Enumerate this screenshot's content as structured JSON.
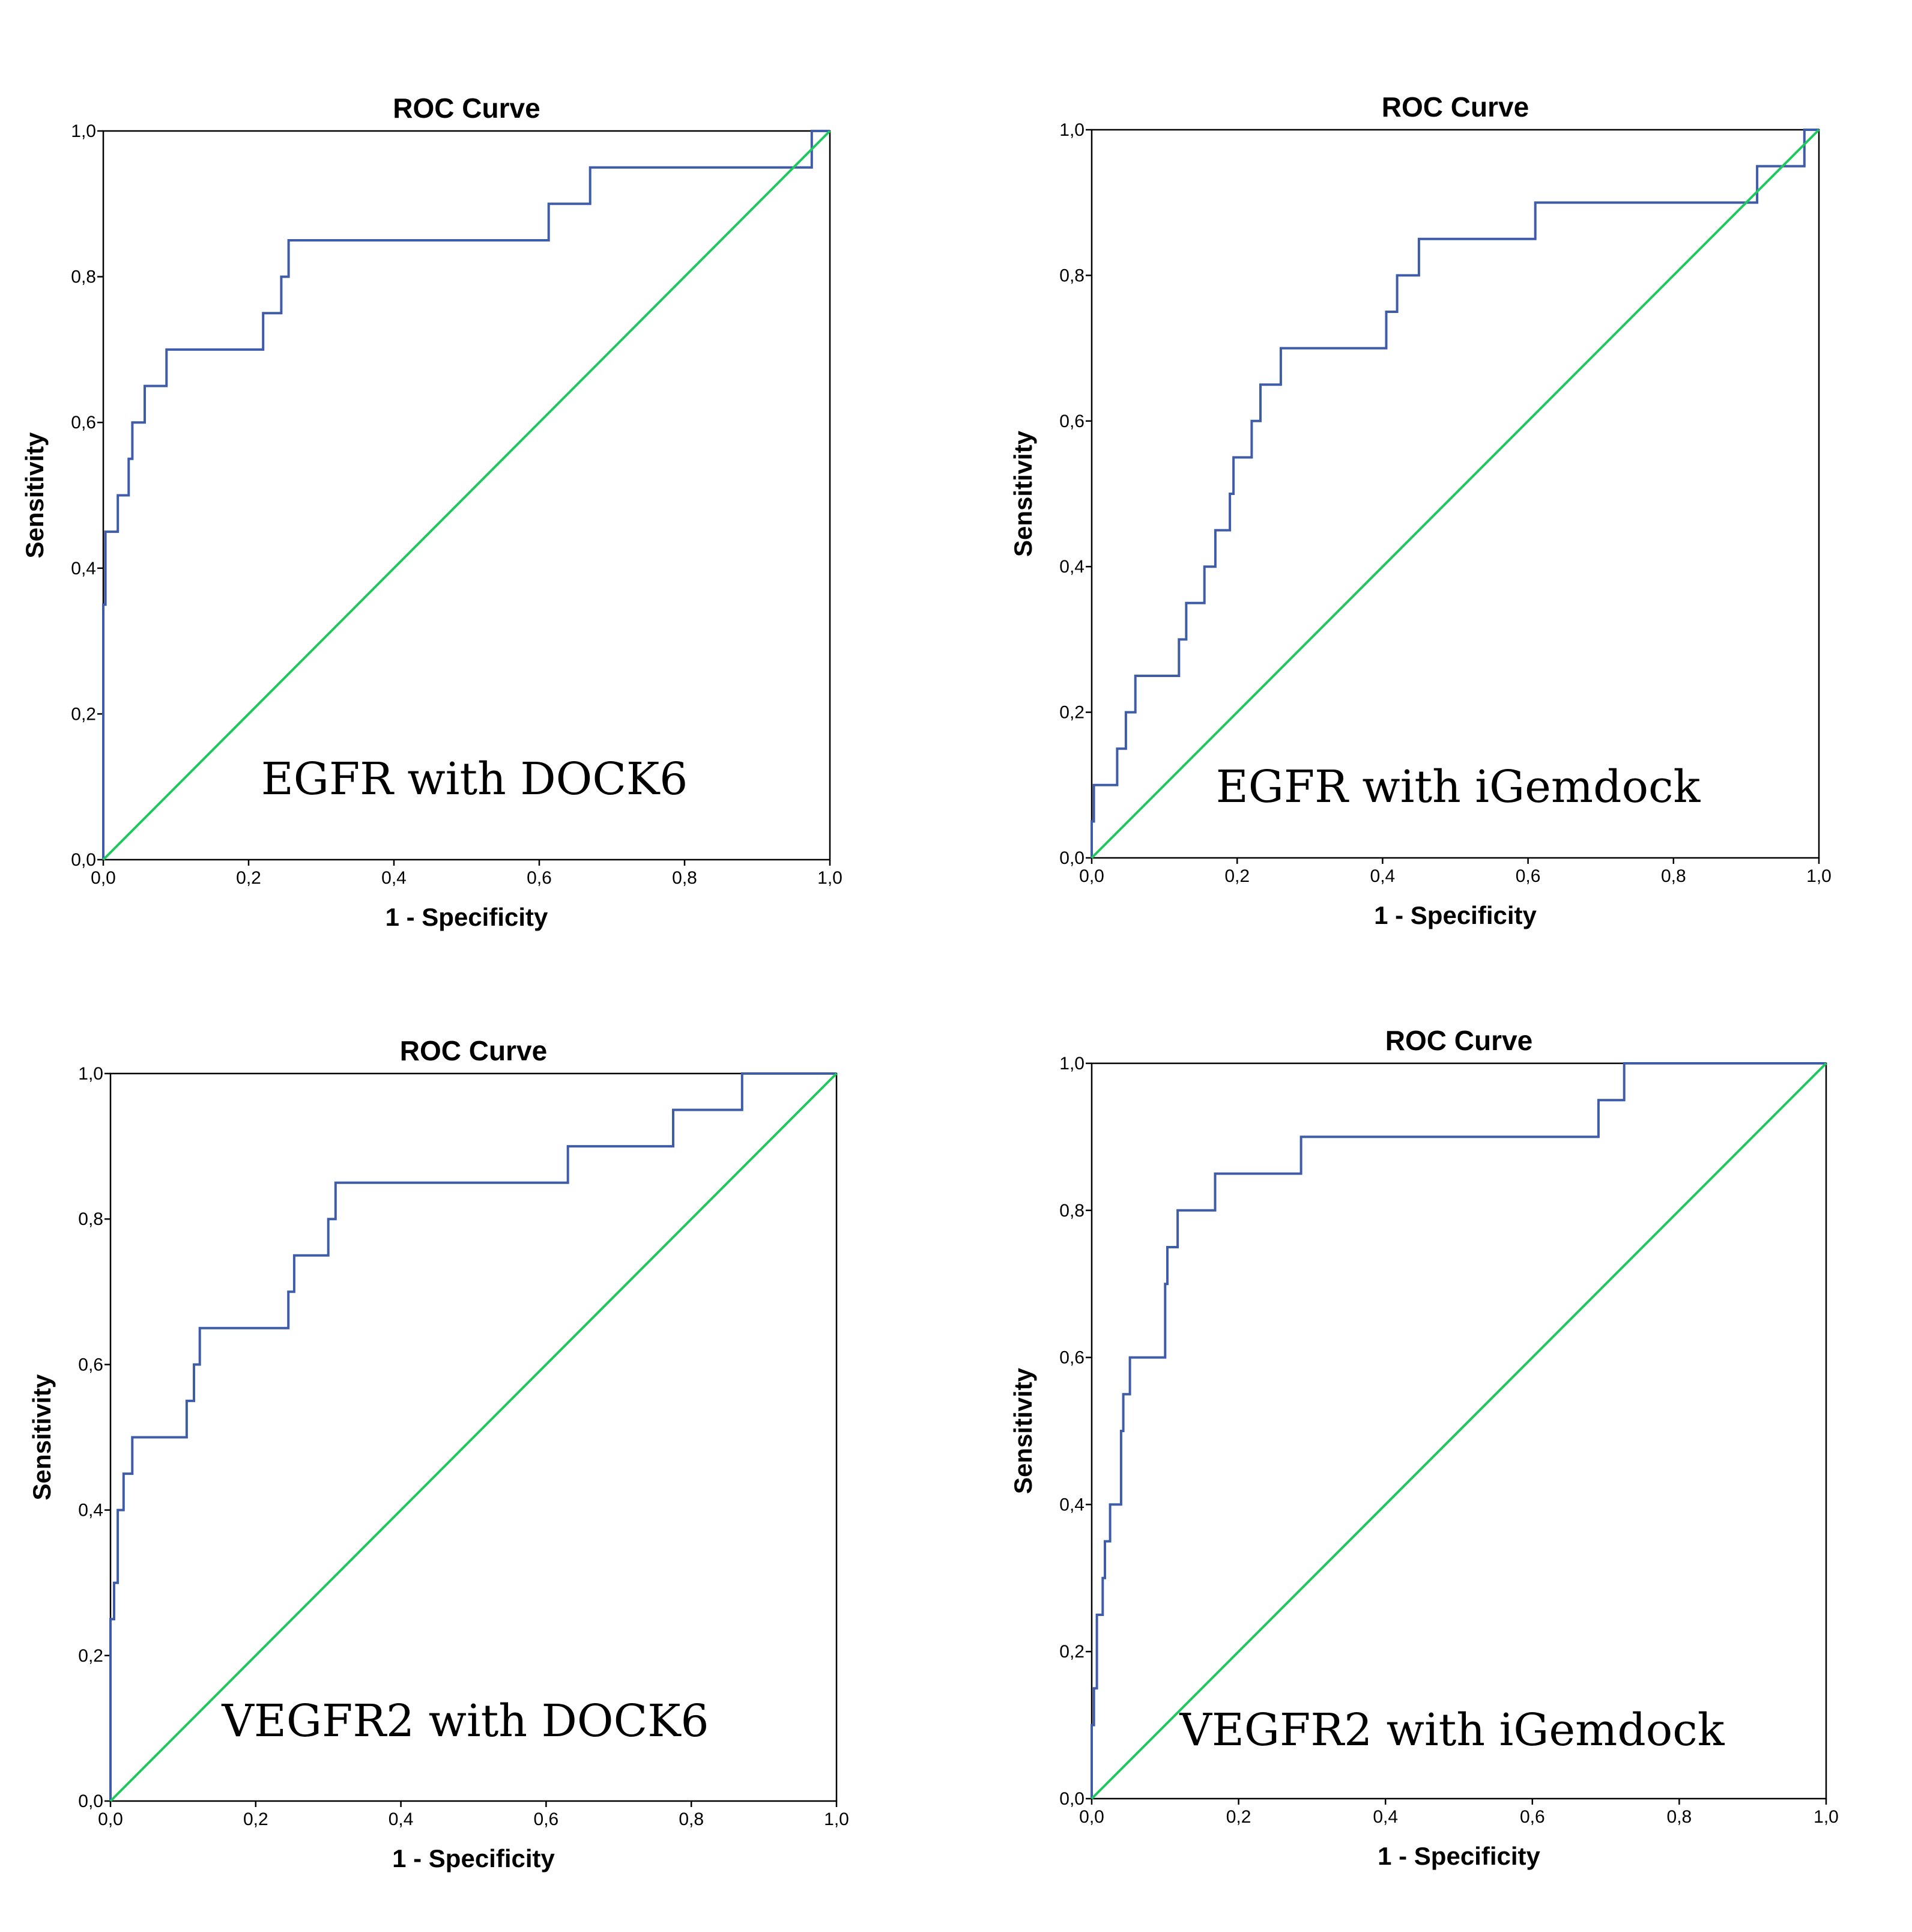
{
  "chart_data": [
    {
      "type": "line",
      "title": "ROC Curve",
      "xlabel": "1 - Specificity",
      "ylabel": "Sensitivity",
      "annotation": "EGFR with DOCK6",
      "xlim": [
        0,
        1
      ],
      "ylim": [
        0,
        1
      ],
      "xticks": [
        "0,0",
        "0,2",
        "0,4",
        "0,6",
        "0,8",
        "1,0"
      ],
      "yticks": [
        "0,0",
        "0,2",
        "0,4",
        "0,6",
        "0,8",
        "1,0"
      ],
      "series": [
        {
          "name": "ROC",
          "color": "#3f5ca9",
          "x": [
            0,
            0,
            0.003,
            0.003,
            0.02,
            0.02,
            0.035,
            0.035,
            0.04,
            0.04,
            0.057,
            0.057,
            0.087,
            0.087,
            0.22,
            0.22,
            0.245,
            0.245,
            0.255,
            0.255,
            0.613,
            0.613,
            0.67,
            0.67,
            0.975,
            0.975,
            1.0
          ],
          "y": [
            0,
            0.35,
            0.35,
            0.45,
            0.45,
            0.5,
            0.5,
            0.55,
            0.55,
            0.6,
            0.6,
            0.65,
            0.65,
            0.7,
            0.7,
            0.75,
            0.75,
            0.8,
            0.8,
            0.85,
            0.85,
            0.9,
            0.9,
            0.95,
            0.95,
            1.0,
            1.0
          ]
        },
        {
          "name": "Reference Line",
          "color": "#1fc75f",
          "x": [
            0,
            1
          ],
          "y": [
            0,
            1
          ]
        }
      ]
    },
    {
      "type": "line",
      "title": "ROC Curve",
      "xlabel": "1 - Specificity",
      "ylabel": "Sensitivity",
      "annotation": "EGFR with iGemdock",
      "xlim": [
        0,
        1
      ],
      "ylim": [
        0,
        1
      ],
      "xticks": [
        "0,0",
        "0,2",
        "0,4",
        "0,6",
        "0,8",
        "1,0"
      ],
      "yticks": [
        "0,0",
        "0,2",
        "0,4",
        "0,6",
        "0,8",
        "1,0"
      ],
      "series": [
        {
          "name": "ROC",
          "color": "#3f5ca9",
          "x": [
            0,
            0,
            0.003,
            0.003,
            0.035,
            0.035,
            0.047,
            0.047,
            0.06,
            0.06,
            0.12,
            0.12,
            0.13,
            0.13,
            0.155,
            0.155,
            0.17,
            0.17,
            0.19,
            0.19,
            0.195,
            0.195,
            0.22,
            0.22,
            0.232,
            0.232,
            0.26,
            0.26,
            0.405,
            0.405,
            0.42,
            0.42,
            0.45,
            0.45,
            0.61,
            0.61,
            0.915,
            0.915,
            0.98,
            0.98,
            1.0
          ],
          "y": [
            0,
            0.05,
            0.05,
            0.1,
            0.1,
            0.15,
            0.15,
            0.2,
            0.2,
            0.25,
            0.25,
            0.3,
            0.3,
            0.35,
            0.35,
            0.4,
            0.4,
            0.45,
            0.45,
            0.5,
            0.5,
            0.55,
            0.55,
            0.6,
            0.6,
            0.65,
            0.65,
            0.7,
            0.7,
            0.75,
            0.75,
            0.8,
            0.8,
            0.85,
            0.85,
            0.9,
            0.9,
            0.95,
            0.95,
            1.0,
            1.0
          ]
        },
        {
          "name": "Reference Line",
          "color": "#1fc75f",
          "x": [
            0,
            1
          ],
          "y": [
            0,
            1
          ]
        }
      ]
    },
    {
      "type": "line",
      "title": "ROC Curve",
      "xlabel": "1 - Specificity",
      "ylabel": "Sensitivity",
      "annotation": "VEGFR2 with DOCK6",
      "xlim": [
        0,
        1
      ],
      "ylim": [
        0,
        1
      ],
      "xticks": [
        "0,0",
        "0,2",
        "0,4",
        "0,6",
        "0,8",
        "1,0"
      ],
      "yticks": [
        "0,0",
        "0,2",
        "0,4",
        "0,6",
        "0,8",
        "1,0"
      ],
      "series": [
        {
          "name": "ROC",
          "color": "#3f5ca9",
          "x": [
            0,
            0,
            0.005,
            0.005,
            0.01,
            0.01,
            0.018,
            0.018,
            0.03,
            0.03,
            0.105,
            0.105,
            0.115,
            0.115,
            0.123,
            0.123,
            0.245,
            0.245,
            0.253,
            0.253,
            0.3,
            0.3,
            0.31,
            0.31,
            0.63,
            0.63,
            0.775,
            0.775,
            0.87,
            0.87,
            1.0
          ],
          "y": [
            0,
            0.25,
            0.25,
            0.3,
            0.3,
            0.4,
            0.4,
            0.45,
            0.45,
            0.5,
            0.5,
            0.55,
            0.55,
            0.6,
            0.6,
            0.65,
            0.65,
            0.7,
            0.7,
            0.75,
            0.75,
            0.8,
            0.8,
            0.85,
            0.85,
            0.9,
            0.9,
            0.95,
            0.95,
            1.0,
            1.0
          ]
        },
        {
          "name": "Reference Line",
          "color": "#1fc75f",
          "x": [
            0,
            1
          ],
          "y": [
            0,
            1
          ]
        }
      ]
    },
    {
      "type": "line",
      "title": "ROC Curve",
      "xlabel": "1 - Specificity",
      "ylabel": "Sensitivity",
      "annotation": "VEGFR2 with iGemdock",
      "xlim": [
        0,
        1
      ],
      "ylim": [
        0,
        1
      ],
      "xticks": [
        "0,0",
        "0,2",
        "0,4",
        "0,6",
        "0,8",
        "1,0"
      ],
      "yticks": [
        "0,0",
        "0,2",
        "0,4",
        "0,6",
        "0,8",
        "1,0"
      ],
      "series": [
        {
          "name": "ROC",
          "color": "#3f5ca9",
          "x": [
            0,
            0,
            0.003,
            0.003,
            0.007,
            0.007,
            0.015,
            0.015,
            0.018,
            0.018,
            0.025,
            0.025,
            0.04,
            0.04,
            0.043,
            0.043,
            0.052,
            0.052,
            0.1,
            0.1,
            0.103,
            0.103,
            0.117,
            0.117,
            0.168,
            0.168,
            0.285,
            0.285,
            0.69,
            0.69,
            0.725,
            0.725,
            1.0
          ],
          "y": [
            0,
            0.1,
            0.1,
            0.15,
            0.15,
            0.25,
            0.25,
            0.3,
            0.3,
            0.35,
            0.35,
            0.4,
            0.4,
            0.5,
            0.5,
            0.55,
            0.55,
            0.6,
            0.6,
            0.7,
            0.7,
            0.75,
            0.75,
            0.8,
            0.8,
            0.85,
            0.85,
            0.9,
            0.9,
            0.95,
            0.95,
            1.0,
            1.0
          ]
        },
        {
          "name": "Reference Line",
          "color": "#1fc75f",
          "x": [
            0,
            1
          ],
          "y": [
            0,
            1
          ]
        }
      ]
    }
  ]
}
